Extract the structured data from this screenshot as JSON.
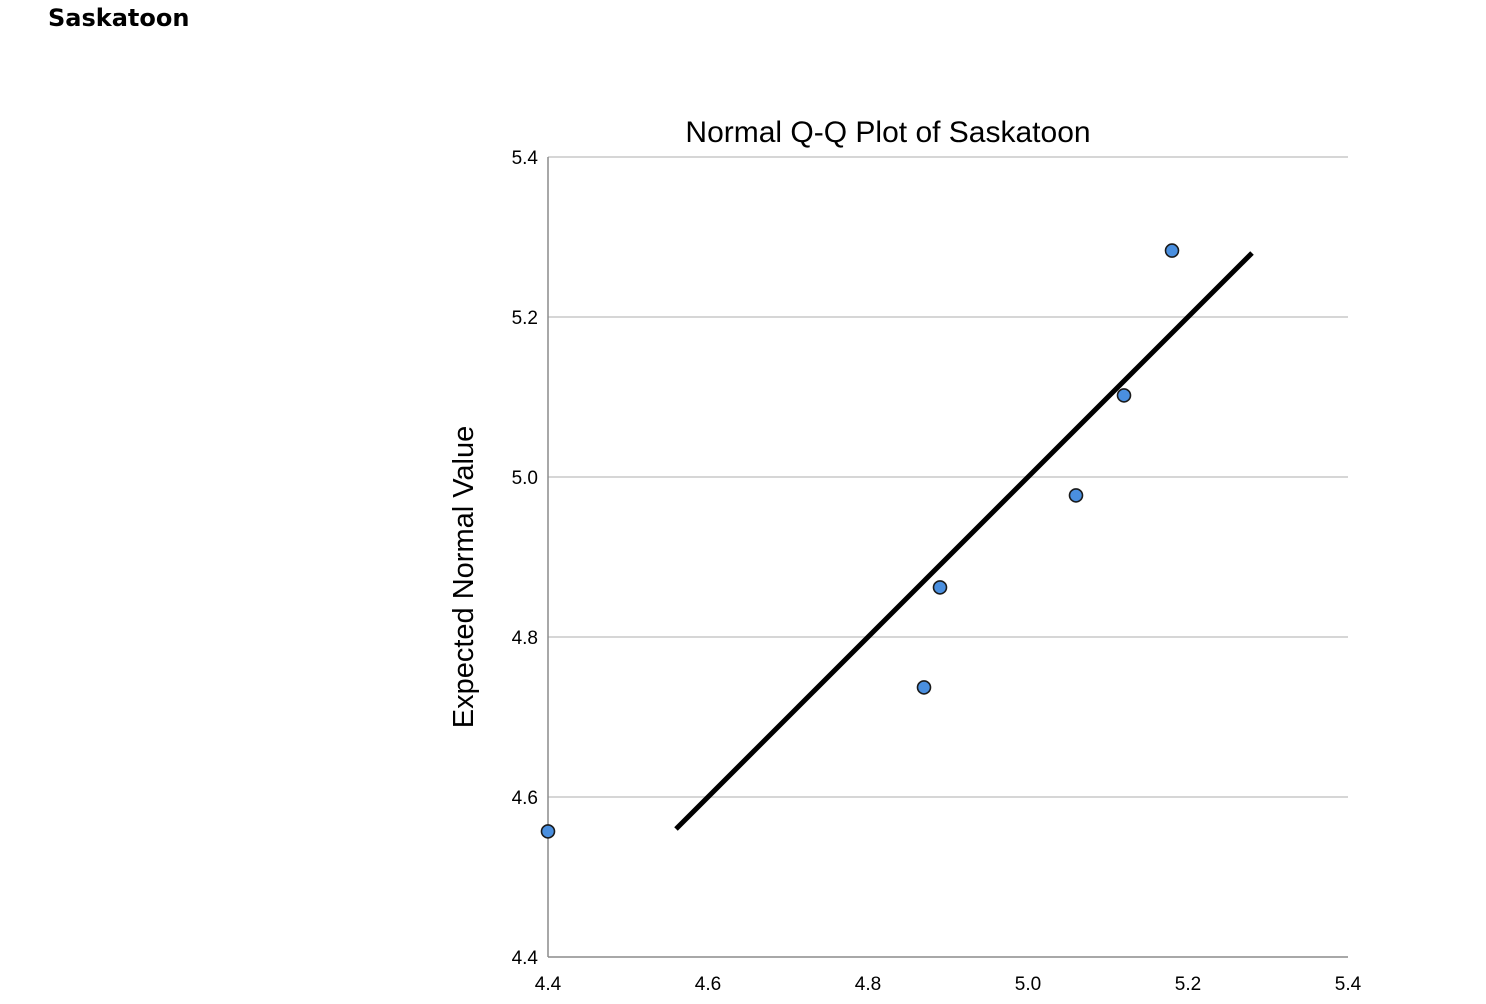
{
  "page": {
    "heading": "Saskatoon"
  },
  "chart_data": {
    "type": "scatter",
    "title": "Normal Q-Q Plot of Saskatoon",
    "xlabel": "",
    "ylabel": "Expected Normal Value",
    "xlim": [
      4.4,
      5.4
    ],
    "ylim": [
      4.4,
      5.4
    ],
    "x_ticks": [
      "4.4",
      "4.6",
      "4.8",
      "5.0",
      "5.2",
      "5.4"
    ],
    "y_ticks": [
      "4.4",
      "4.6",
      "4.8",
      "5.0",
      "5.2",
      "5.4"
    ],
    "grid": "horizontal",
    "points": [
      {
        "x": 4.4,
        "y": 4.557
      },
      {
        "x": 4.87,
        "y": 4.737
      },
      {
        "x": 4.89,
        "y": 4.862
      },
      {
        "x": 5.06,
        "y": 4.977
      },
      {
        "x": 5.12,
        "y": 5.102
      },
      {
        "x": 5.18,
        "y": 5.283
      }
    ],
    "reference_line": {
      "x1": 4.56,
      "y1": 4.56,
      "x2": 5.28,
      "y2": 5.28
    },
    "colors": {
      "point_fill": "#4a8fdf",
      "point_stroke": "#1a1a1a",
      "line": "#000000",
      "grid": "#c8c8c8",
      "axis": "#8c8c8c"
    }
  }
}
